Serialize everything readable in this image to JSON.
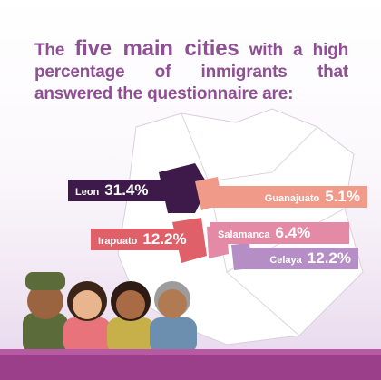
{
  "title": {
    "before": "The",
    "emphasis": "five main cities",
    "after": "with a high percentage of inmigrants that answered the questionnaire are:"
  },
  "cities": [
    {
      "name": "Leon",
      "percent": "31.4%"
    },
    {
      "name": "Guanajuato",
      "percent": "5.1%"
    },
    {
      "name": "Irapuato",
      "percent": "12.2%"
    },
    {
      "name": "Salamanca",
      "percent": "6.4%"
    },
    {
      "name": "Celaya",
      "percent": "12.2%"
    }
  ]
}
